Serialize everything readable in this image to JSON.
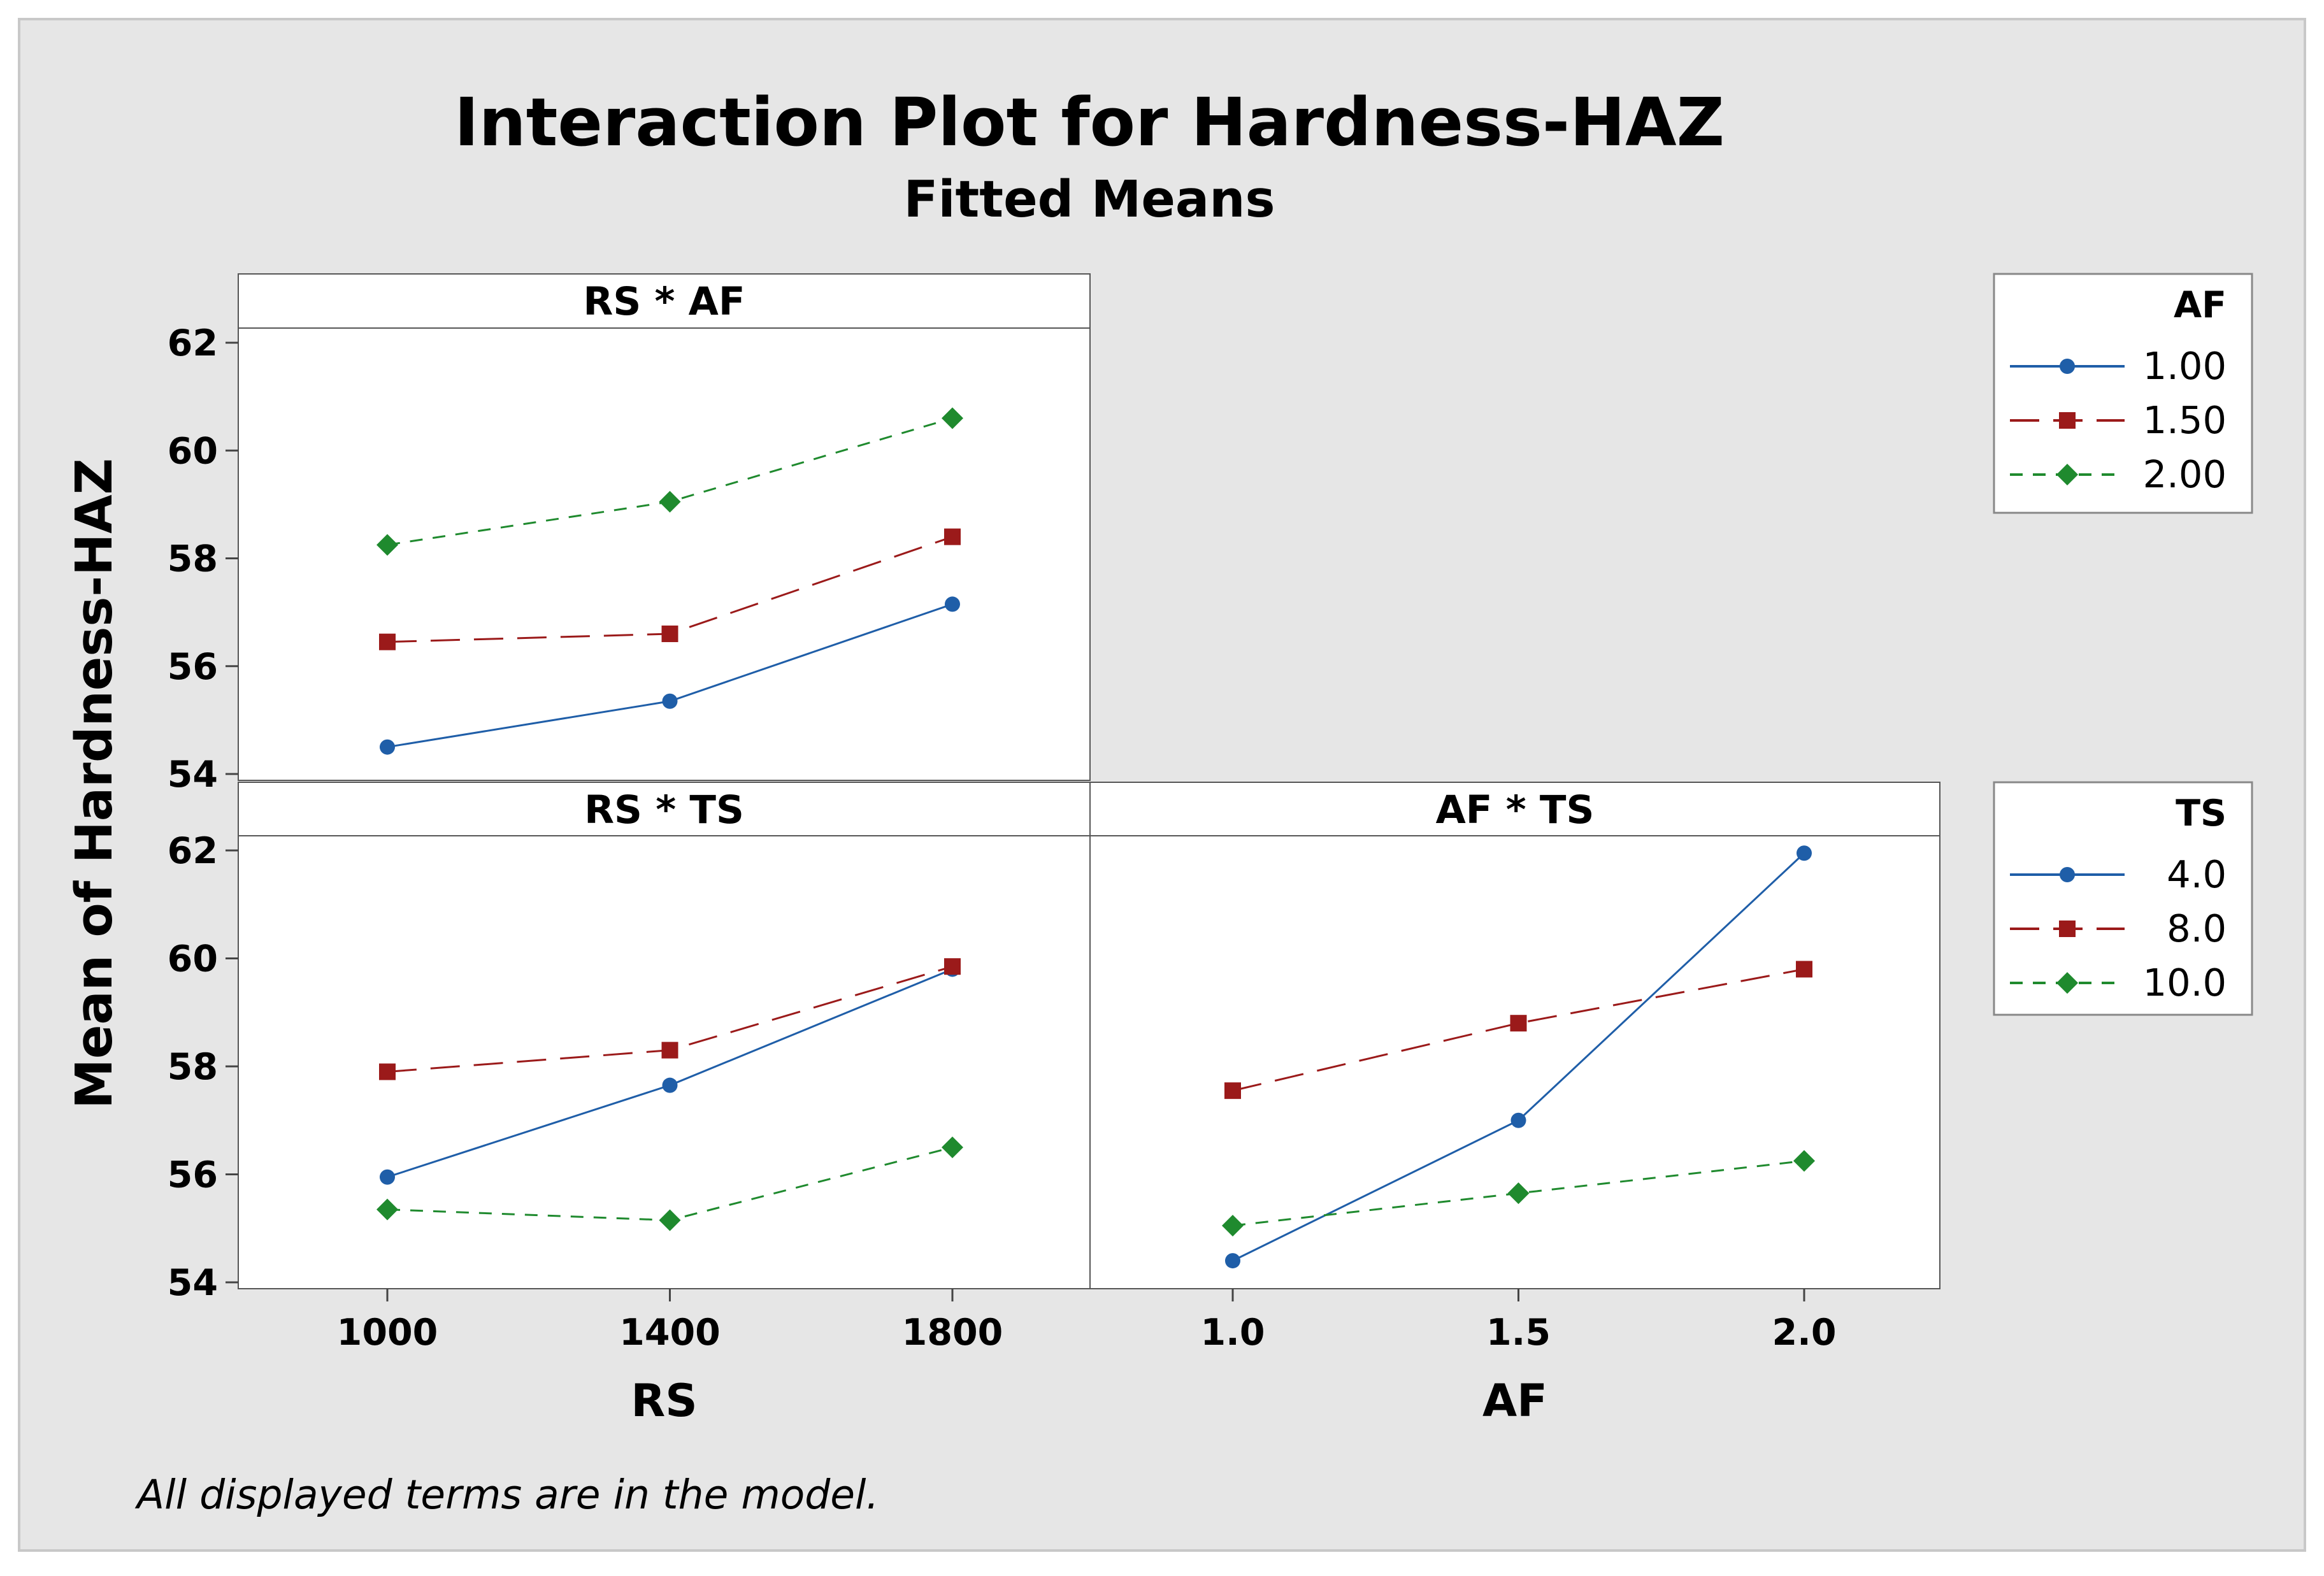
{
  "figure": {
    "title": "Interaction Plot for Hardness-HAZ",
    "subtitle": "Fitted Means",
    "ylabel": "Mean of Hardness-HAZ",
    "footnote": "All displayed terms are in the model."
  },
  "colors": {
    "background": "#e6e6e6",
    "panel": "#ffffff",
    "series_1": "#1f5ea8",
    "series_2": "#9b1a1a",
    "series_3": "#1f8a2e"
  },
  "legends": [
    {
      "title": "AF",
      "entries": [
        "1.00",
        "1.50",
        "2.00"
      ],
      "markers": [
        "circle",
        "square",
        "diamond"
      ],
      "placement": "right-top"
    },
    {
      "title": "TS",
      "entries": [
        "4.0",
        "8.0",
        "10.0"
      ],
      "markers": [
        "circle",
        "square",
        "diamond"
      ],
      "placement": "right-bottom"
    }
  ],
  "chart_data": [
    {
      "type": "line",
      "panel": "RS * AF",
      "x": [
        1000,
        1400,
        1800
      ],
      "x_tick_labels": [
        "1000",
        "1400",
        "1800"
      ],
      "ylim": [
        54,
        62
      ],
      "y_ticks": [
        54,
        56,
        58,
        60,
        62
      ],
      "legend": "AF",
      "series": [
        {
          "name": "1.00",
          "values": [
            54.5,
            55.35,
            57.15
          ]
        },
        {
          "name": "1.50",
          "values": [
            56.45,
            56.6,
            58.4
          ]
        },
        {
          "name": "2.00",
          "values": [
            58.25,
            59.05,
            60.6
          ]
        }
      ]
    },
    {
      "type": "line",
      "panel": "RS * TS",
      "x": [
        1000,
        1400,
        1800
      ],
      "x_tick_labels": [
        "1000",
        "1400",
        "1800"
      ],
      "xlabel": "RS",
      "ylim": [
        54,
        62
      ],
      "y_ticks": [
        54,
        56,
        58,
        60,
        62
      ],
      "legend": "TS",
      "series": [
        {
          "name": "4.0",
          "values": [
            55.95,
            57.65,
            59.8
          ]
        },
        {
          "name": "8.0",
          "values": [
            57.9,
            58.3,
            59.85
          ]
        },
        {
          "name": "10.0",
          "values": [
            55.35,
            55.15,
            56.5
          ]
        }
      ]
    },
    {
      "type": "line",
      "panel": "AF * TS",
      "x": [
        1.0,
        1.5,
        2.0
      ],
      "x_tick_labels": [
        "1.0",
        "1.5",
        "2.0"
      ],
      "xlabel": "AF",
      "ylim": [
        54,
        62
      ],
      "legend": "TS",
      "series": [
        {
          "name": "4.0",
          "values": [
            54.4,
            57.0,
            61.95
          ]
        },
        {
          "name": "8.0",
          "values": [
            57.55,
            58.8,
            59.8
          ]
        },
        {
          "name": "10.0",
          "values": [
            55.05,
            55.65,
            56.25
          ]
        }
      ]
    }
  ]
}
